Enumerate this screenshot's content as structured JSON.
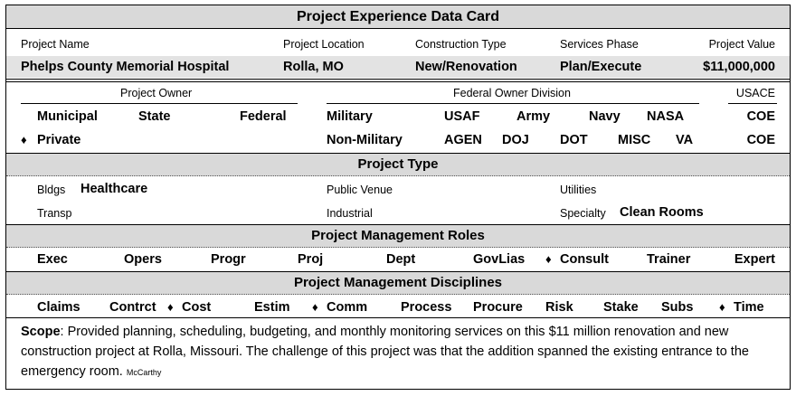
{
  "title": "Project Experience Data Card",
  "header": {
    "project_name_label": "Project Name",
    "project_name": "Phelps County Memorial Hospital",
    "location_label": "Project Location",
    "location": "Rolla, MO",
    "construction_type_label": "Construction Type",
    "construction_type": "New/Renovation",
    "services_phase_label": "Services Phase",
    "services_phase": "Plan/Execute",
    "value_label": "Project Value",
    "value": "$11,000,000"
  },
  "owner": {
    "owner_label": "Project Owner",
    "federal_division_label": "Federal Owner Division",
    "usace_label": "USACE",
    "municipal": "Municipal",
    "state": "State",
    "federal": "Federal",
    "private": "Private",
    "private_selected_marker": "♦",
    "military": "Military",
    "usaf": "USAF",
    "army": "Army",
    "navy": "Navy",
    "nasa": "NASA",
    "coe1": "COE",
    "non_military": "Non-Military",
    "agen": "AGEN",
    "doj": "DOJ",
    "dot": "DOT",
    "misc": "MISC",
    "va": "VA",
    "coe2": "COE"
  },
  "project_type": {
    "heading": "Project Type",
    "bldgs_label": "Bldgs",
    "bldgs_value": "Healthcare",
    "public_venue": "Public Venue",
    "utilities": "Utilities",
    "transp": "Transp",
    "industrial": "Industrial",
    "specialty_label": "Specialty",
    "specialty_value": "Clean Rooms"
  },
  "roles": {
    "heading": "Project Management Roles",
    "items": [
      "Exec",
      "Opers",
      "Progr",
      "Proj",
      "Dept",
      "GovLias",
      "Consult",
      "Trainer",
      "Expert"
    ],
    "selected_marker": "♦"
  },
  "disciplines": {
    "heading": "Project Management Disciplines",
    "items": [
      "Claims",
      "Contrct",
      "Cost",
      "Estim",
      "Comm",
      "Process",
      "Procure",
      "Risk",
      "Stake",
      "Subs",
      "Time"
    ],
    "selected_marker": "♦"
  },
  "scope": {
    "label": "Scope",
    "text": ": Provided planning, scheduling, budgeting, and monthly monitoring services on this $11 million renovation and new construction project at Rolla, Missouri. The challenge of this project was that the addition spanned the existing entrance to the emergency room.",
    "credit": "McCarthy"
  }
}
